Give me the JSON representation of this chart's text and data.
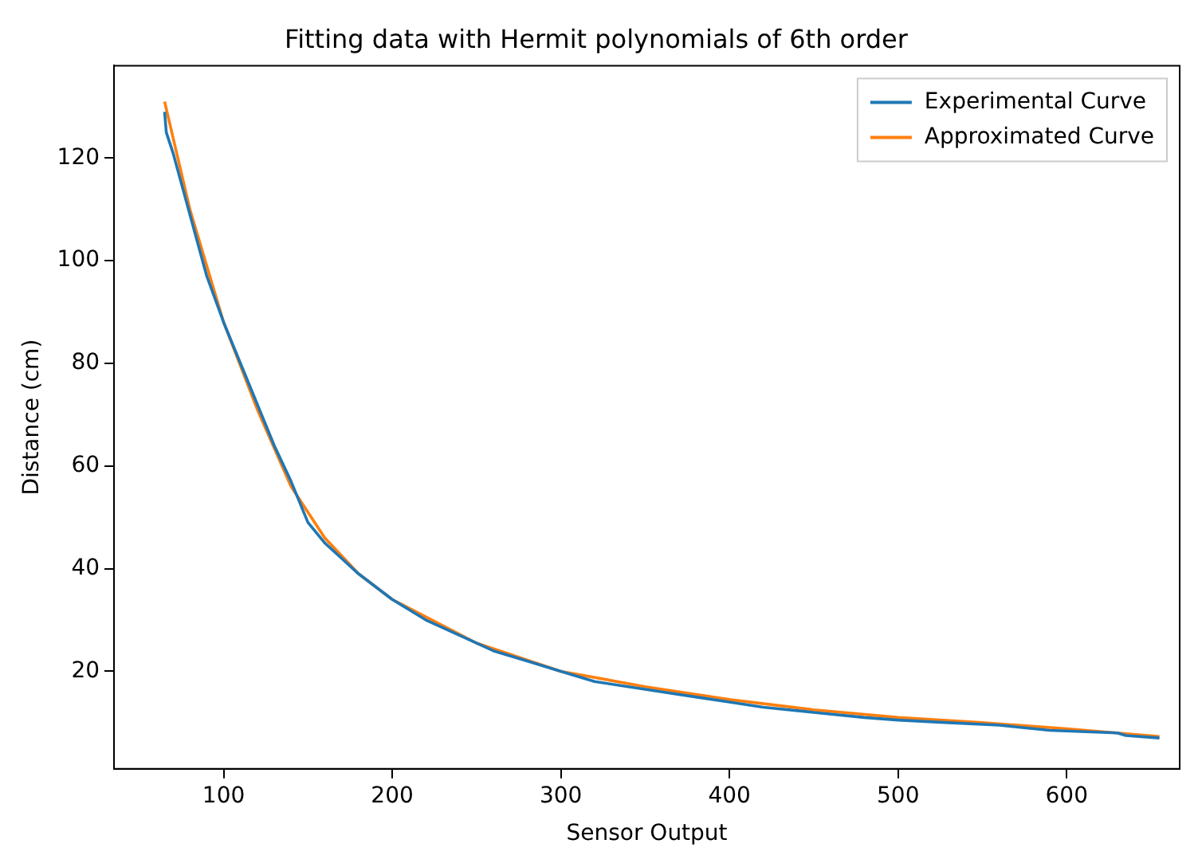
{
  "chart_data": {
    "type": "line",
    "title": "Fitting data with Hermit polynomials of 6th order",
    "xlabel": "Sensor Output",
    "ylabel": "Distance (cm)",
    "xlim": [
      35,
      667
    ],
    "xticks": [
      100,
      200,
      300,
      400,
      500,
      600
    ],
    "ylim": [
      1,
      138
    ],
    "yticks": [
      20,
      40,
      60,
      80,
      100,
      120
    ],
    "grid": false,
    "legend": "top right",
    "marker": "none",
    "line_style": "solid",
    "series": [
      {
        "name": "Experimental Curve",
        "color": "#1f77b4",
        "x": [
          65,
          66,
          70,
          80,
          90,
          100,
          110,
          120,
          130,
          140,
          150,
          160,
          170,
          180,
          200,
          220,
          240,
          260,
          280,
          300,
          320,
          340,
          360,
          380,
          400,
          420,
          450,
          480,
          500,
          530,
          560,
          590,
          630,
          635,
          655
        ],
        "values": [
          129,
          125,
          121,
          109,
          97,
          88,
          80,
          72,
          64,
          57,
          49,
          45,
          42,
          39,
          34,
          30,
          27,
          24,
          22,
          20,
          18,
          17,
          16,
          15,
          14,
          13,
          12,
          11,
          10.5,
          10,
          9.5,
          8.5,
          8,
          7.5,
          7
        ]
      },
      {
        "name": "Approximated Curve",
        "color": "#ff7f0e",
        "x": [
          65,
          70,
          80,
          100,
          120,
          140,
          160,
          180,
          200,
          250,
          300,
          350,
          400,
          450,
          500,
          550,
          600,
          655
        ],
        "values": [
          131,
          124,
          110,
          88,
          71,
          56,
          46,
          39,
          34,
          25.5,
          20,
          17,
          14.5,
          12.5,
          11,
          10,
          8.8,
          7.3
        ]
      }
    ]
  }
}
